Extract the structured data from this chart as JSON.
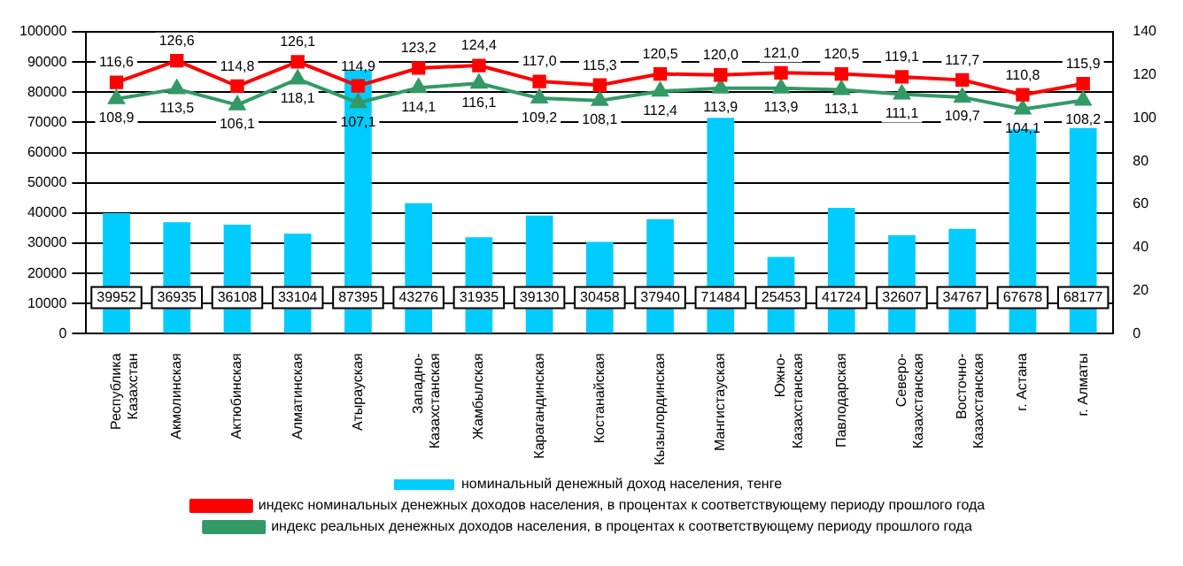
{
  "chart_data": {
    "type": "bar",
    "categories": [
      "Республика Казахстан",
      "Акмолинская",
      "Актюбинская",
      "Алматинская",
      "Атырауская",
      "Западно-Казахстанская",
      "Жамбылская",
      "Карагандинская",
      "Костанайская",
      "Кызылординская",
      "Мангистауская",
      "Южно-Казахстанская",
      "Павлодарская",
      "Северо-Казахстанская",
      "Восточно-Казахстанская",
      "г. Астана",
      "г. Алматы"
    ],
    "series": [
      {
        "name": "номинальный денежный доход населения, тенге",
        "color": "#00ccff",
        "values": [
          39952,
          36935,
          36108,
          33104,
          87395,
          43276,
          31935,
          39130,
          30458,
          37940,
          71484,
          25453,
          41724,
          32607,
          34767,
          67678,
          68177
        ],
        "value_labels": [
          "39952",
          "36935",
          "36108",
          "33104",
          "87395",
          "43276",
          "31935",
          "39130",
          "30458",
          "37940",
          "71484",
          "25453",
          "41724",
          "32607",
          "34767",
          "67678",
          "68177"
        ]
      },
      {
        "name": "индекс номинальных денежных доходов населения, в процентах к соответствующему периоду прошлого года",
        "type": "line",
        "axis": "y2",
        "marker": "square",
        "color": "#ff0000",
        "values": [
          116.6,
          126.6,
          114.8,
          126.1,
          114.9,
          123.2,
          124.4,
          117.0,
          115.3,
          120.5,
          120.0,
          121.0,
          120.5,
          119.1,
          117.7,
          110.8,
          115.9
        ],
        "value_labels": [
          "116,6",
          "126,6",
          "114,8",
          "126,1",
          "114,9",
          "123,2",
          "124,4",
          "117,0",
          "115,3",
          "120,5",
          "120,0",
          "121,0",
          "120,5",
          "119,1",
          "117,7",
          "110,8",
          "115,9"
        ]
      },
      {
        "name": "индекс реальных денежных доходов населения, в процентах к соответствующему периоду прошлого года",
        "type": "line",
        "axis": "y2",
        "marker": "triangle",
        "color": "#339966",
        "values": [
          108.9,
          113.5,
          106.1,
          118.1,
          107.1,
          114.1,
          116.1,
          109.2,
          108.1,
          112.4,
          113.9,
          113.9,
          113.1,
          111.1,
          109.7,
          104.1,
          108.2
        ],
        "value_labels": [
          "108,9",
          "113,5",
          "106,1",
          "118,1",
          "107,1",
          "114,1",
          "116,1",
          "109,2",
          "108,1",
          "112,4",
          "113,9",
          "113,9",
          "113,1",
          "111,1",
          "109,7",
          "104,1",
          "108,2"
        ]
      }
    ],
    "ylim": [
      0,
      100000
    ],
    "yticks": [
      0,
      10000,
      20000,
      30000,
      40000,
      50000,
      60000,
      70000,
      80000,
      90000,
      100000
    ],
    "y2lim": [
      0,
      140
    ],
    "y2ticks": [
      0,
      20,
      40,
      60,
      80,
      100,
      120,
      140
    ],
    "grid": "y",
    "legend": "bottom"
  }
}
